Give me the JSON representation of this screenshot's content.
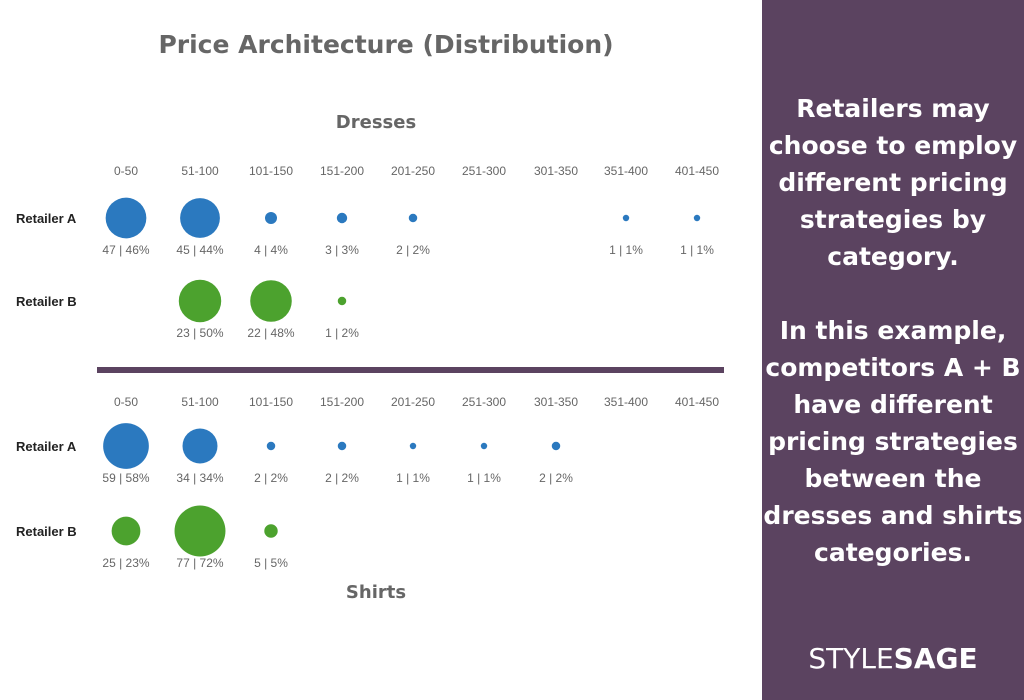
{
  "title": "Price Architecture (Distribution)",
  "sidebar": {
    "paragraph_1": "Retailers may choose to employ different pricing strategies by category.",
    "paragraph_2": "In this example, competitors A + B have different pricing strategies between the dresses and shirts categories.",
    "logo_part_1": "STYLE",
    "logo_part_2": "SAGE"
  },
  "colors": {
    "retailer_a": "#2b79bf",
    "retailer_b": "#4ca22e",
    "divider": "#5b4360",
    "text": "#666666",
    "sidebar_bg": "#5b4360"
  },
  "chart_data": [
    {
      "type": "scatter",
      "title": "Dresses",
      "categories": [
        "0-50",
        "51-100",
        "101-150",
        "151-200",
        "201-250",
        "251-300",
        "301-350",
        "351-400",
        "401-450"
      ],
      "series": [
        {
          "name": "Retailer A",
          "values": [
            47,
            45,
            4,
            3,
            2,
            null,
            null,
            1,
            1
          ],
          "percents": [
            46,
            44,
            4,
            3,
            2,
            null,
            null,
            1,
            1
          ],
          "labels": [
            "47 | 46%",
            "45 | 44%",
            "4 | 4%",
            "3 | 3%",
            "2 | 2%",
            "",
            "",
            "1 | 1%",
            "1 | 1%"
          ]
        },
        {
          "name": "Retailer B",
          "values": [
            null,
            23,
            22,
            1,
            null,
            null,
            null,
            null,
            null
          ],
          "percents": [
            null,
            50,
            48,
            2,
            null,
            null,
            null,
            null,
            null
          ],
          "labels": [
            "",
            "23 | 50%",
            "22 | 48%",
            "1 | 2%",
            "",
            "",
            "",
            "",
            ""
          ]
        }
      ]
    },
    {
      "type": "scatter",
      "title": "Shirts",
      "categories": [
        "0-50",
        "51-100",
        "101-150",
        "151-200",
        "201-250",
        "251-300",
        "301-350",
        "351-400",
        "401-450"
      ],
      "series": [
        {
          "name": "Retailer A",
          "values": [
            59,
            34,
            2,
            2,
            1,
            1,
            2,
            null,
            null
          ],
          "percents": [
            58,
            34,
            2,
            2,
            1,
            1,
            2,
            null,
            null
          ],
          "labels": [
            "59 | 58%",
            "34 | 34%",
            "2 | 2%",
            "2 | 2%",
            "1 | 1%",
            "1 | 1%",
            "2 | 2%",
            "",
            ""
          ]
        },
        {
          "name": "Retailer B",
          "values": [
            25,
            77,
            5,
            null,
            null,
            null,
            null,
            null,
            null
          ],
          "percents": [
            23,
            72,
            5,
            null,
            null,
            null,
            null,
            null,
            null
          ],
          "labels": [
            "25 | 23%",
            "77 | 72%",
            "5 | 5%",
            "",
            "",
            "",
            "",
            "",
            ""
          ]
        }
      ]
    }
  ]
}
